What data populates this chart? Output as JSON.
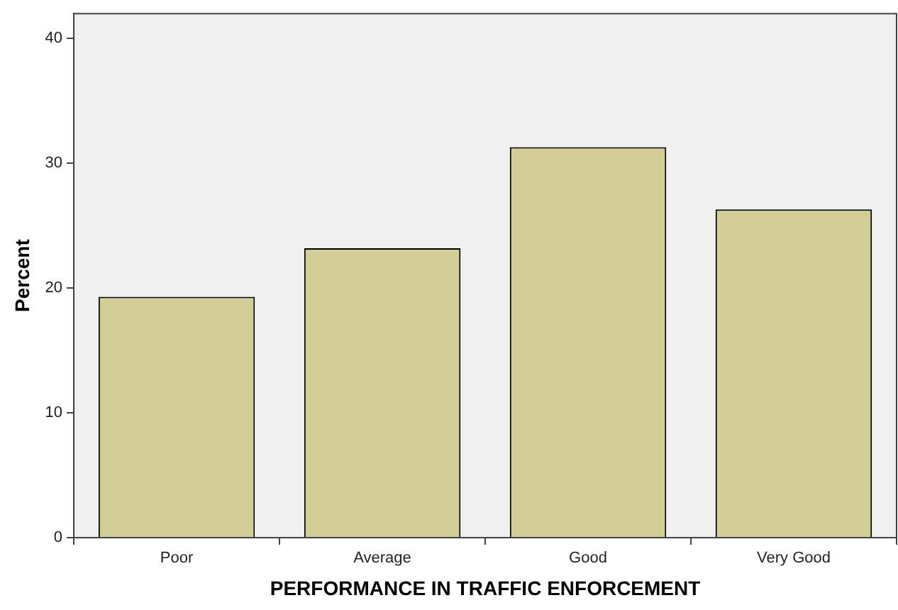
{
  "chart_data": {
    "type": "bar",
    "xlabel": "PERFORMANCE IN TRAFFIC ENFORCEMENT",
    "ylabel": "Percent",
    "categories": [
      "Poor",
      "Average",
      "Good",
      "Very Good"
    ],
    "values": [
      19.3,
      23.2,
      31.3,
      26.3
    ],
    "color": "#d3ce97",
    "ylim": [
      0,
      42
    ],
    "yticks": [
      0,
      10,
      20,
      30,
      40
    ],
    "grid": false,
    "legend": false
  }
}
